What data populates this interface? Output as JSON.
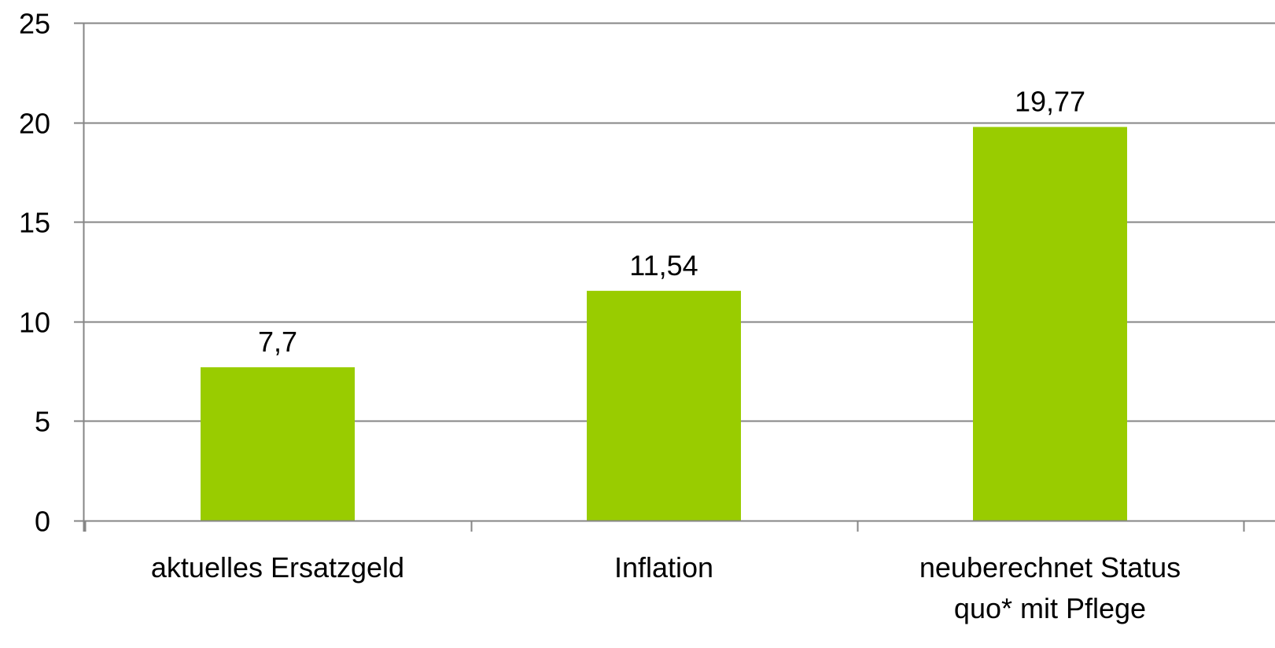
{
  "chart_data": {
    "type": "bar",
    "title": "",
    "xlabel": "",
    "ylabel": "",
    "categories": [
      [
        "aktuelles Ersatzgeld"
      ],
      [
        "Inflation"
      ],
      [
        "neuberechnet Status",
        "quo* mit Pflege"
      ]
    ],
    "values": [
      7.7,
      11.54,
      19.77
    ],
    "value_labels": [
      "7,7",
      "11,54",
      "19,77"
    ],
    "ylim": [
      0,
      25
    ],
    "yticks": [
      0,
      5,
      10,
      15,
      20,
      25
    ],
    "grid": true,
    "legend": "none",
    "bar_color": "#99CC00",
    "grid_color": "#868686",
    "axis_color": "#868686"
  }
}
